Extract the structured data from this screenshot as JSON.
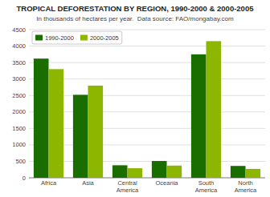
{
  "chart_data": {
    "type": "bar",
    "title": "TROPICAL DEFORESTATION BY REGION, 1990-2000 & 2000-2005",
    "subtitle": "In thousands of hectares per year.  Data source: FAO/mongabay.com",
    "categories": [
      "Africa",
      "Asia",
      "Central\nAmerica",
      "Oceania",
      "South\nAmerica",
      "North\nAmerica"
    ],
    "series": [
      {
        "name": "1990-2000",
        "color": "#1a6e00",
        "values": [
          3620,
          2520,
          380,
          510,
          3750,
          360
        ]
      },
      {
        "name": "2000-2005",
        "color": "#8db600",
        "values": [
          3300,
          2800,
          290,
          370,
          4150,
          270
        ]
      }
    ],
    "ylim": [
      0,
      4500
    ],
    "yticks": [
      0,
      500,
      1000,
      1500,
      2000,
      2500,
      3000,
      3500,
      4000,
      4500
    ],
    "grid": true,
    "legend": "upper left"
  }
}
